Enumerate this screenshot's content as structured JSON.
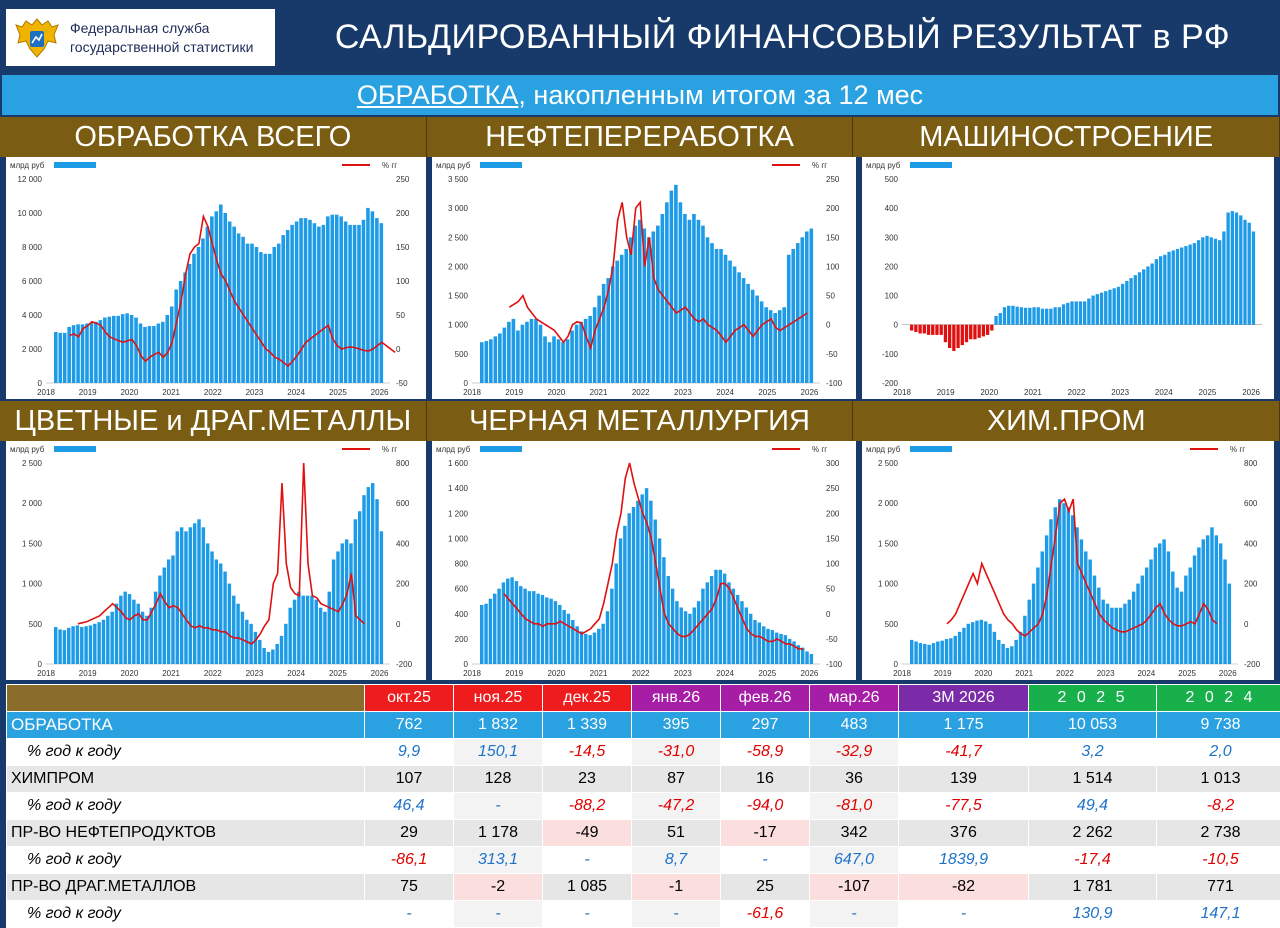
{
  "header": {
    "org_line1": "Федеральная служба",
    "org_line2": "государственной статистики",
    "title": "САЛЬДИРОВАННЫЙ ФИНАНСОВЫЙ РЕЗУЛЬТАТ в РФ",
    "subtitle_underlined": "ОБРАБОТКА",
    "subtitle_rest": ", накопленным итогом за 12 мес"
  },
  "colors": {
    "bar_blue": "#1e9be6",
    "bar_red": "#e01010",
    "line_red": "#e01010"
  },
  "chart_data": [
    {
      "type": "bar",
      "title": "ОБРАБОТКА ВСЕГО",
      "left_unit": "млрд руб",
      "right_unit": "% гг",
      "x": [
        "2018",
        "2019",
        "2020",
        "2021",
        "2022",
        "2023",
        "2024",
        "2025",
        "2026"
      ],
      "left_ticks": [
        "0",
        "2 000",
        "4 000",
        "6 000",
        "8 000",
        "10 000",
        "12 000"
      ],
      "ylim": [
        0,
        12000
      ],
      "right_ticks": [
        "-50",
        "0",
        "50",
        "100",
        "150",
        "200",
        "250"
      ],
      "y2lim": [
        -50,
        250
      ],
      "bars": [
        3000,
        2950,
        2950,
        3300,
        3400,
        3450,
        3450,
        3500,
        3550,
        3600,
        3700,
        3850,
        3900,
        3950,
        3950,
        4050,
        4100,
        4000,
        3850,
        3500,
        3300,
        3350,
        3350,
        3500,
        3600,
        4000,
        4500,
        5500,
        6000,
        6500,
        7000,
        7600,
        8000,
        8500,
        9200,
        9800,
        10100,
        10500,
        10000,
        9500,
        9200,
        8800,
        8600,
        8200,
        8200,
        8000,
        7700,
        7600,
        7600,
        8000,
        8200,
        8700,
        9000,
        9300,
        9500,
        9700,
        9700,
        9600,
        9400,
        9200,
        9300,
        9800,
        9900,
        9900,
        9800,
        9500,
        9300,
        9300,
        9300,
        9600,
        10300,
        10100,
        9700,
        9400
      ],
      "line_start": 3,
      "line": [
        20,
        22,
        18,
        30,
        34,
        40,
        38,
        35,
        25,
        18,
        15,
        12,
        10,
        12,
        14,
        5,
        -10,
        -18,
        -12,
        -8,
        -5,
        -12,
        -5,
        10,
        40,
        70,
        110,
        140,
        150,
        155,
        195,
        180,
        155,
        130,
        110,
        100,
        85,
        70,
        60,
        50,
        40,
        30,
        20,
        10,
        0,
        -5,
        -12,
        -15,
        -20,
        -25,
        -18,
        -10,
        0,
        10,
        15,
        20,
        25,
        30,
        35,
        15,
        5,
        0,
        2,
        3,
        2,
        0,
        -2,
        -3,
        0,
        5,
        10,
        5,
        0,
        -5
      ]
    },
    {
      "type": "bar",
      "title": "НЕФТЕПЕРЕРАБОТКА",
      "left_unit": "млрд руб",
      "right_unit": "% гг",
      "x": [
        "2018",
        "2019",
        "2020",
        "2021",
        "2022",
        "2023",
        "2024",
        "2025",
        "2026"
      ],
      "left_ticks": [
        "0",
        "500",
        "1 000",
        "1 500",
        "2 000",
        "2 500",
        "3 000",
        "3 500"
      ],
      "ylim": [
        0,
        3500
      ],
      "right_ticks": [
        "-100",
        "-50",
        "0",
        "50",
        "100",
        "150",
        "200",
        "250"
      ],
      "y2lim": [
        -100,
        250
      ],
      "bars": [
        700,
        720,
        750,
        800,
        850,
        950,
        1050,
        1100,
        900,
        1000,
        1050,
        1100,
        1100,
        1000,
        800,
        700,
        800,
        750,
        700,
        750,
        900,
        1000,
        1050,
        1100,
        1150,
        1300,
        1500,
        1700,
        1800,
        2000,
        2100,
        2200,
        2300,
        2500,
        2700,
        2800,
        2650,
        2500,
        2600,
        2700,
        2900,
        3100,
        3300,
        3400,
        3100,
        2900,
        2800,
        2900,
        2800,
        2700,
        2500,
        2400,
        2300,
        2300,
        2200,
        2100,
        2000,
        1900,
        1800,
        1700,
        1600,
        1500,
        1400,
        1300,
        1250,
        1200,
        1250,
        1300,
        2200,
        2300,
        2400,
        2500,
        2600,
        2650
      ],
      "line_start": 6,
      "line": [
        30,
        35,
        40,
        50,
        30,
        20,
        10,
        5,
        0,
        -5,
        -10,
        -20,
        -30,
        -20,
        0,
        5,
        3,
        -20,
        -40,
        -10,
        10,
        30,
        60,
        100,
        180,
        210,
        150,
        120,
        200,
        210,
        100,
        150,
        80,
        60,
        50,
        40,
        30,
        20,
        25,
        30,
        20,
        10,
        5,
        10,
        0,
        -5,
        -10,
        -20,
        -30,
        -20,
        -10,
        -5,
        0,
        -10,
        -20,
        -10,
        0,
        5,
        10,
        -5,
        -10,
        -5,
        0,
        5,
        10,
        15,
        20
      ]
    },
    {
      "type": "bar",
      "title": "МАШИНОСТРОЕНИЕ",
      "left_unit": "млрд руб",
      "x": [
        "2018",
        "2019",
        "2020",
        "2021",
        "2022",
        "2023",
        "2024",
        "2025",
        "2026"
      ],
      "left_ticks": [
        "-200",
        "-100",
        "0",
        "100",
        "200",
        "300",
        "400",
        "500"
      ],
      "ylim": [
        -200,
        500
      ],
      "bars": [
        -20,
        -25,
        -30,
        -30,
        -35,
        -35,
        -35,
        -35,
        -60,
        -80,
        -90,
        -80,
        -70,
        -60,
        -50,
        -50,
        -45,
        -40,
        -35,
        -20,
        30,
        40,
        60,
        65,
        65,
        62,
        60,
        58,
        58,
        60,
        60,
        55,
        55,
        55,
        60,
        60,
        70,
        75,
        80,
        80,
        80,
        80,
        90,
        100,
        105,
        110,
        115,
        120,
        125,
        130,
        140,
        150,
        160,
        170,
        180,
        190,
        200,
        210,
        225,
        235,
        240,
        250,
        255,
        260,
        265,
        270,
        275,
        280,
        290,
        300,
        305,
        300,
        295,
        290,
        320,
        385,
        390,
        385,
        375,
        360,
        350,
        320
      ]
    },
    {
      "type": "bar",
      "title": "ЦВЕТНЫЕ и ДРАГ.МЕТАЛЛЫ",
      "left_unit": "млрд руб",
      "right_unit": "% гг",
      "x": [
        "2018",
        "2019",
        "2020",
        "2021",
        "2022",
        "2023",
        "2024",
        "2025",
        "2026"
      ],
      "left_ticks": [
        "0",
        "500",
        "1 000",
        "1 500",
        "2 000",
        "2 500"
      ],
      "ylim": [
        0,
        2500
      ],
      "right_ticks": [
        "-200",
        "0",
        "200",
        "400",
        "600",
        "800"
      ],
      "y2lim": [
        -200,
        800
      ],
      "bars": [
        460,
        430,
        420,
        450,
        470,
        480,
        460,
        470,
        480,
        500,
        520,
        550,
        600,
        650,
        750,
        850,
        900,
        870,
        800,
        750,
        650,
        600,
        700,
        900,
        1100,
        1200,
        1300,
        1350,
        1650,
        1700,
        1650,
        1700,
        1750,
        1800,
        1700,
        1500,
        1400,
        1300,
        1250,
        1150,
        1000,
        850,
        750,
        650,
        550,
        500,
        400,
        300,
        200,
        150,
        180,
        250,
        350,
        500,
        700,
        800,
        900,
        850,
        850,
        850,
        800,
        700,
        650,
        900,
        1300,
        1400,
        1500,
        1550,
        1500,
        1800,
        1900,
        2100,
        2200,
        2250,
        2050,
        1650
      ],
      "line_start": 5,
      "line": [
        0,
        5,
        10,
        20,
        30,
        40,
        60,
        80,
        100,
        80,
        60,
        30,
        20,
        40,
        50,
        20,
        20,
        60,
        100,
        150,
        110,
        80,
        90,
        80,
        50,
        20,
        -10,
        -20,
        -10,
        -20,
        -20,
        -30,
        -30,
        -40,
        -40,
        -60,
        -70,
        -70,
        -80,
        -90,
        -100,
        -80,
        -50,
        -10,
        20,
        200,
        250,
        700,
        300,
        180,
        150,
        140,
        800,
        300,
        140,
        130,
        100,
        90,
        80,
        70,
        60,
        100,
        150,
        250,
        40,
        20,
        0
      ]
    },
    {
      "type": "bar",
      "title": "ЧЕРНАЯ МЕТАЛЛУРГИЯ",
      "left_unit": "млрд руб",
      "right_unit": "% гг",
      "x": [
        "2018",
        "2019",
        "2020",
        "2021",
        "2022",
        "2023",
        "2024",
        "2025",
        "2026"
      ],
      "left_ticks": [
        "0",
        "200",
        "400",
        "600",
        "800",
        "1 000",
        "1 200",
        "1 400",
        "1 600"
      ],
      "ylim": [
        0,
        1600
      ],
      "right_ticks": [
        "-100",
        "-50",
        "0",
        "50",
        "100",
        "150",
        "200",
        "250",
        "300"
      ],
      "y2lim": [
        -100,
        300
      ],
      "bars": [
        470,
        480,
        520,
        560,
        600,
        650,
        680,
        690,
        660,
        620,
        600,
        580,
        580,
        560,
        550,
        530,
        520,
        500,
        470,
        430,
        400,
        350,
        300,
        260,
        240,
        230,
        250,
        280,
        320,
        420,
        600,
        800,
        1000,
        1100,
        1200,
        1250,
        1300,
        1350,
        1400,
        1300,
        1150,
        1000,
        850,
        700,
        600,
        500,
        450,
        420,
        400,
        450,
        500,
        600,
        650,
        700,
        750,
        750,
        720,
        650,
        600,
        550,
        500,
        450,
        400,
        350,
        330,
        300,
        280,
        270,
        250,
        240,
        230,
        200,
        180,
        150,
        130,
        100,
        80
      ],
      "line_start": 5,
      "line": [
        40,
        30,
        20,
        10,
        0,
        -10,
        -15,
        -20,
        -20,
        -25,
        -20,
        -20,
        -20,
        -15,
        -20,
        -25,
        -30,
        -35,
        -40,
        -35,
        -30,
        -20,
        -10,
        20,
        60,
        100,
        160,
        200,
        270,
        320,
        260,
        230,
        200,
        180,
        150,
        100,
        50,
        0,
        -20,
        -30,
        -40,
        -45,
        -45,
        -40,
        -30,
        -20,
        -10,
        0,
        10,
        30,
        60,
        60,
        50,
        30,
        10,
        -10,
        -30,
        -40,
        -45,
        -45,
        -50,
        -55,
        -55,
        -50,
        -55,
        -60,
        -60,
        -65,
        -70,
        -70
      ]
    },
    {
      "type": "bar",
      "title": "ХИМ.ПРОМ",
      "left_unit": "млрд руб",
      "right_unit": "% гг",
      "x": [
        "2018",
        "2019",
        "2020",
        "2021",
        "2022",
        "2023",
        "2024",
        "2025",
        "2026"
      ],
      "left_ticks": [
        "0",
        "500",
        "1 000",
        "1 500",
        "2 000",
        "2 500"
      ],
      "ylim": [
        0,
        2500
      ],
      "right_ticks": [
        "-200",
        "0",
        "200",
        "400",
        "600",
        "800"
      ],
      "y2lim": [
        -200,
        800
      ],
      "bars": [
        300,
        280,
        260,
        250,
        240,
        260,
        280,
        290,
        310,
        320,
        350,
        400,
        450,
        500,
        520,
        540,
        550,
        530,
        500,
        400,
        300,
        250,
        200,
        220,
        300,
        400,
        600,
        800,
        1000,
        1200,
        1400,
        1600,
        1800,
        1950,
        2050,
        2000,
        1950,
        1850,
        1700,
        1550,
        1400,
        1300,
        1100,
        950,
        800,
        750,
        700,
        700,
        700,
        750,
        800,
        900,
        1000,
        1100,
        1200,
        1300,
        1450,
        1500,
        1550,
        1400,
        1150,
        950,
        900,
        1100,
        1200,
        1350,
        1450,
        1550,
        1600,
        1700,
        1600,
        1500,
        1300,
        1000
      ],
      "line_start": 8,
      "line": [
        0,
        20,
        50,
        100,
        150,
        200,
        250,
        200,
        300,
        250,
        200,
        150,
        100,
        50,
        20,
        0,
        -30,
        -50,
        -60,
        -40,
        -20,
        0,
        50,
        150,
        300,
        450,
        600,
        620,
        560,
        620,
        300,
        250,
        200,
        150,
        100,
        50,
        20,
        0,
        -20,
        -30,
        -40,
        -40,
        -30,
        -20,
        -10,
        0,
        20,
        50,
        80,
        100,
        50,
        20,
        0,
        -10,
        -10,
        0,
        10,
        0,
        50,
        100,
        70,
        20,
        0
      ]
    }
  ],
  "table": {
    "headers": {
      "months": [
        "окт.25",
        "ноя.25",
        "дек.25",
        "янв.26",
        "фев.26",
        "мар.26"
      ],
      "quarter": "3М 2026",
      "years": [
        "2 0 2 5",
        "2 0 2 4"
      ]
    },
    "rows": [
      {
        "label": "ОБРАБОТКА",
        "kind": "main",
        "cells": [
          "762",
          "1 832",
          "1 339",
          "395",
          "297",
          "483",
          "1 175",
          "10 053",
          "9 738"
        ]
      },
      {
        "label": "% год к году",
        "kind": "pct",
        "cells": [
          "9,9",
          "150,1",
          "-14,5",
          "-31,0",
          "-58,9",
          "-32,9",
          "-41,7",
          "3,2",
          "2,0"
        ]
      },
      {
        "label": "ХИМПРОМ",
        "kind": "grey",
        "cells": [
          "107",
          "128",
          "23",
          "87",
          "16",
          "36",
          "139",
          "1 514",
          "1 013"
        ]
      },
      {
        "label": "% год к году",
        "kind": "pct",
        "cells": [
          "46,4",
          "-",
          "-88,2",
          "-47,2",
          "-94,0",
          "-81,0",
          "-77,5",
          "49,4",
          "-8,2"
        ]
      },
      {
        "label": "ПР-ВО НЕФТЕПРОДУКТОВ",
        "kind": "grey",
        "cells": [
          "29",
          "1 178",
          "-49",
          "51",
          "-17",
          "342",
          "376",
          "2 262",
          "2 738"
        ]
      },
      {
        "label": "% год к году",
        "kind": "pct",
        "cells": [
          "-86,1",
          "313,1",
          "-",
          "8,7",
          "-",
          "647,0",
          "1839,9",
          "-17,4",
          "-10,5"
        ]
      },
      {
        "label": "ПР-ВО ДРАГ.МЕТАЛЛОВ",
        "kind": "grey",
        "cells": [
          "75",
          "-2",
          "1 085",
          "-1",
          "25",
          "-107",
          "-82",
          "1 781",
          "771"
        ]
      },
      {
        "label": "% год к году",
        "kind": "pct",
        "cells": [
          "-",
          "-",
          "-",
          "-",
          "-61,6",
          "-",
          "-",
          "130,9",
          "147,1"
        ]
      }
    ]
  }
}
